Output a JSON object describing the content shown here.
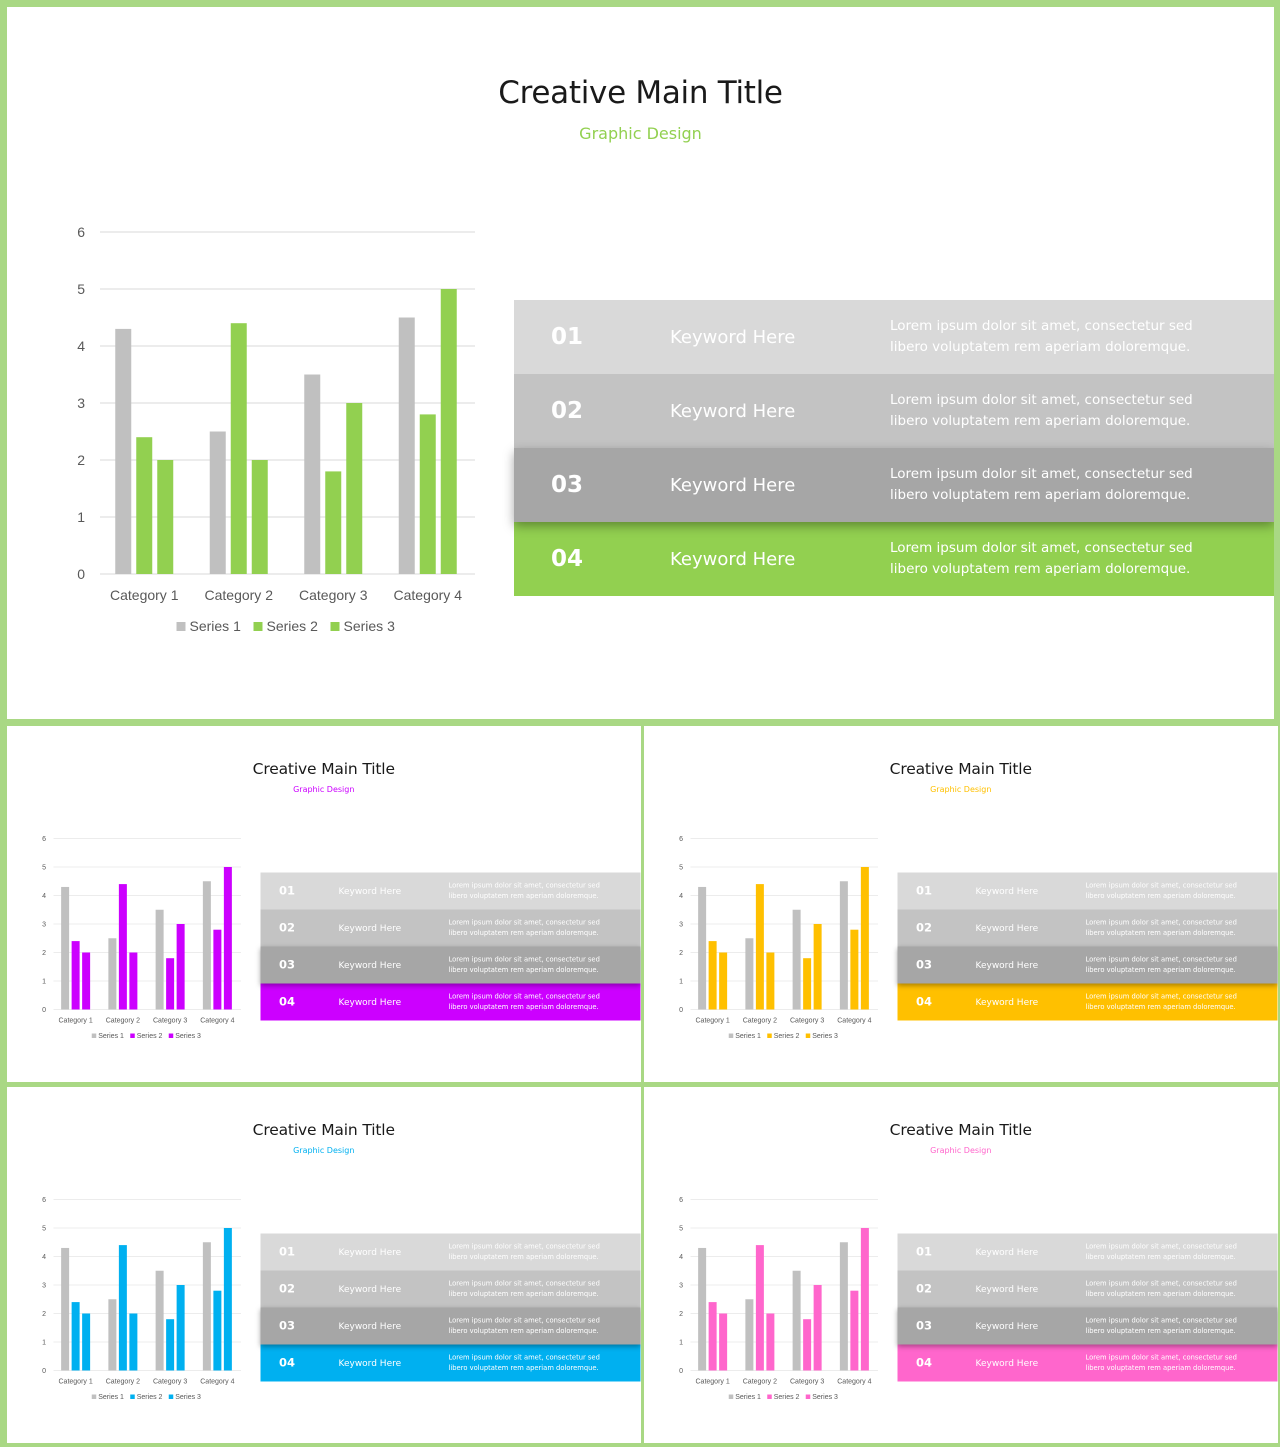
{
  "colors": {
    "border": "#a9d884",
    "gray_bar": "#c0c0c0",
    "rows": [
      "#d9d9d9",
      "#c3c3c3",
      "#a6a6a6"
    ]
  },
  "slides": [
    {
      "accent": "#92d050",
      "title": "Creative Main Title",
      "subtitle": "Graphic Design",
      "rows": [
        {
          "num": "01",
          "keyword": "Keyword Here",
          "desc": "Lorem ipsum dolor sit amet, consectetur sed libero voluptatem rem aperiam doloremque."
        },
        {
          "num": "02",
          "keyword": "Keyword Here",
          "desc": "Lorem ipsum dolor sit amet, consectetur sed libero voluptatem rem aperiam doloremque."
        },
        {
          "num": "03",
          "keyword": "Keyword Here",
          "desc": "Lorem ipsum dolor sit amet, consectetur sed libero voluptatem rem aperiam doloremque."
        },
        {
          "num": "04",
          "keyword": "Keyword Here",
          "desc": "Lorem ipsum dolor sit amet, consectetur sed libero voluptatem rem aperiam doloremque."
        }
      ]
    },
    {
      "accent": "#cc00ff",
      "title": "Creative Main Title",
      "subtitle": "Graphic Design",
      "rows": [
        {
          "num": "01",
          "keyword": "Keyword Here",
          "desc": "Lorem ipsum dolor sit amet, consectetur sed libero voluptatem rem aperiam doloremque."
        },
        {
          "num": "02",
          "keyword": "Keyword Here",
          "desc": "Lorem ipsum dolor sit amet, consectetur sed libero voluptatem rem aperiam doloremque."
        },
        {
          "num": "03",
          "keyword": "Keyword Here",
          "desc": "Lorem ipsum dolor sit amet, consectetur sed libero voluptatem rem aperiam doloremque."
        },
        {
          "num": "04",
          "keyword": "Keyword Here",
          "desc": "Lorem ipsum dolor sit amet, consectetur sed libero voluptatem rem aperiam doloremque."
        }
      ]
    },
    {
      "accent": "#ffc000",
      "title": "Creative Main Title",
      "subtitle": "Graphic Design",
      "rows": [
        {
          "num": "01",
          "keyword": "Keyword Here",
          "desc": "Lorem ipsum dolor sit amet, consectetur sed libero voluptatem rem aperiam doloremque."
        },
        {
          "num": "02",
          "keyword": "Keyword Here",
          "desc": "Lorem ipsum dolor sit amet, consectetur sed libero voluptatem rem aperiam doloremque."
        },
        {
          "num": "03",
          "keyword": "Keyword Here",
          "desc": "Lorem ipsum dolor sit amet, consectetur sed libero voluptatem rem aperiam doloremque."
        },
        {
          "num": "04",
          "keyword": "Keyword Here",
          "desc": "Lorem ipsum dolor sit amet, consectetur sed libero voluptatem rem aperiam doloremque."
        }
      ]
    },
    {
      "accent": "#00b0f0",
      "title": "Creative Main Title",
      "subtitle": "Graphic Design",
      "rows": [
        {
          "num": "01",
          "keyword": "Keyword Here",
          "desc": "Lorem ipsum dolor sit amet, consectetur sed libero voluptatem rem aperiam doloremque."
        },
        {
          "num": "02",
          "keyword": "Keyword Here",
          "desc": "Lorem ipsum dolor sit amet, consectetur sed libero voluptatem rem aperiam doloremque."
        },
        {
          "num": "03",
          "keyword": "Keyword Here",
          "desc": "Lorem ipsum dolor sit amet, consectetur sed libero voluptatem rem aperiam doloremque."
        },
        {
          "num": "04",
          "keyword": "Keyword Here",
          "desc": "Lorem ipsum dolor sit amet, consectetur sed libero voluptatem rem aperiam doloremque."
        }
      ]
    },
    {
      "accent": "#ff66cc",
      "title": "Creative Main Title",
      "subtitle": "Graphic Design",
      "rows": [
        {
          "num": "01",
          "keyword": "Keyword Here",
          "desc": "Lorem ipsum dolor sit amet, consectetur sed libero voluptatem rem aperiam doloremque."
        },
        {
          "num": "02",
          "keyword": "Keyword Here",
          "desc": "Lorem ipsum dolor sit amet, consectetur sed libero voluptatem rem aperiam doloremque."
        },
        {
          "num": "03",
          "keyword": "Keyword Here",
          "desc": "Lorem ipsum dolor sit amet, consectetur sed libero voluptatem rem aperiam doloremque."
        },
        {
          "num": "04",
          "keyword": "Keyword Here",
          "desc": "Lorem ipsum dolor sit amet, consectetur sed libero voluptatem rem aperiam doloremque."
        }
      ]
    }
  ],
  "chart_data": [
    {
      "type": "bar",
      "categories": [
        "Category 1",
        "Category 2",
        "Category 3",
        "Category 4"
      ],
      "series": [
        {
          "name": "Series 1",
          "values": [
            4.3,
            2.5,
            3.5,
            4.5
          ],
          "color": "#c0c0c0"
        },
        {
          "name": "Series 2",
          "values": [
            2.4,
            4.4,
            1.8,
            2.8
          ],
          "color": "#92d050"
        },
        {
          "name": "Series 3",
          "values": [
            2,
            2,
            3,
            5
          ],
          "color": "#92d050"
        }
      ],
      "yticks": [
        "0",
        "1",
        "2",
        "3",
        "4",
        "5",
        "6"
      ],
      "ylim": [
        0,
        6
      ],
      "grid": true,
      "legend": "bottom"
    },
    {
      "type": "bar",
      "categories": [
        "Category 1",
        "Category 2",
        "Category 3",
        "Category 4"
      ],
      "series": [
        {
          "name": "Series 1",
          "values": [
            4.3,
            2.5,
            3.5,
            4.5
          ],
          "color": "#c0c0c0"
        },
        {
          "name": "Series 2",
          "values": [
            2.4,
            4.4,
            1.8,
            2.8
          ],
          "color": "#cc00ff"
        },
        {
          "name": "Series 3",
          "values": [
            2,
            2,
            3,
            5
          ],
          "color": "#cc00ff"
        }
      ],
      "yticks": [
        "0",
        "1",
        "2",
        "3",
        "4",
        "5",
        "6"
      ],
      "ylim": [
        0,
        6
      ],
      "grid": true,
      "legend": "bottom"
    },
    {
      "type": "bar",
      "categories": [
        "Category 1",
        "Category 2",
        "Category 3",
        "Category 4"
      ],
      "series": [
        {
          "name": "Series 1",
          "values": [
            4.3,
            2.5,
            3.5,
            4.5
          ],
          "color": "#c0c0c0"
        },
        {
          "name": "Series 2",
          "values": [
            2.4,
            4.4,
            1.8,
            2.8
          ],
          "color": "#ffc000"
        },
        {
          "name": "Series 3",
          "values": [
            2,
            2,
            3,
            5
          ],
          "color": "#ffc000"
        }
      ],
      "yticks": [
        "0",
        "1",
        "2",
        "3",
        "4",
        "5",
        "6"
      ],
      "ylim": [
        0,
        6
      ],
      "grid": true,
      "legend": "bottom"
    },
    {
      "type": "bar",
      "categories": [
        "Category 1",
        "Category 2",
        "Category 3",
        "Category 4"
      ],
      "series": [
        {
          "name": "Series 1",
          "values": [
            4.3,
            2.5,
            3.5,
            4.5
          ],
          "color": "#c0c0c0"
        },
        {
          "name": "Series 2",
          "values": [
            2.4,
            4.4,
            1.8,
            2.8
          ],
          "color": "#00b0f0"
        },
        {
          "name": "Series 3",
          "values": [
            2,
            2,
            3,
            5
          ],
          "color": "#00b0f0"
        }
      ],
      "yticks": [
        "0",
        "1",
        "2",
        "3",
        "4",
        "5",
        "6"
      ],
      "ylim": [
        0,
        6
      ],
      "grid": true,
      "legend": "bottom"
    },
    {
      "type": "bar",
      "categories": [
        "Category 1",
        "Category 2",
        "Category 3",
        "Category 4"
      ],
      "series": [
        {
          "name": "Series 1",
          "values": [
            4.3,
            2.5,
            3.5,
            4.5
          ],
          "color": "#c0c0c0"
        },
        {
          "name": "Series 2",
          "values": [
            2.4,
            4.4,
            1.8,
            2.8
          ],
          "color": "#ff66cc"
        },
        {
          "name": "Series 3",
          "values": [
            2,
            2,
            3,
            5
          ],
          "color": "#ff66cc"
        }
      ],
      "yticks": [
        "0",
        "1",
        "2",
        "3",
        "4",
        "5",
        "6"
      ],
      "ylim": [
        0,
        6
      ],
      "grid": true,
      "legend": "bottom"
    }
  ]
}
